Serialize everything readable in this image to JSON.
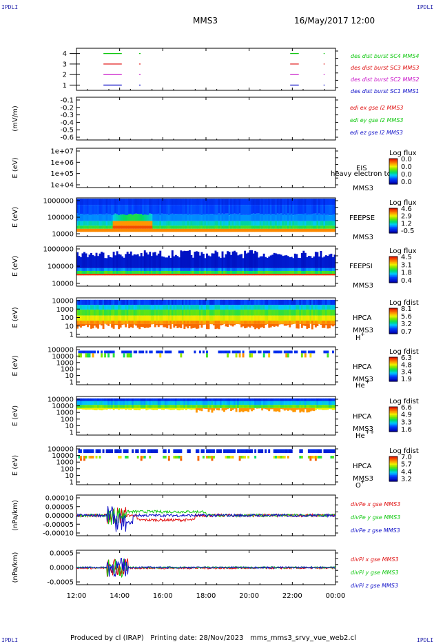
{
  "header": {
    "corner_label": "IPDLI",
    "spacecraft": "MMS3",
    "datetime": "16/May/2017 12:00"
  },
  "footer": {
    "produced_by": "Produced by cl (IRAP)",
    "printing_date": "Printing date: 28/Nov/2023",
    "filename": "mms_mms3_srvy_vue_web2.cl"
  },
  "colors": {
    "red": "#e01010",
    "green": "#10c810",
    "blue": "#1010c8",
    "magenta": "#c814c8",
    "label_blue": "#1c1ca8"
  },
  "chart_data": [
    {
      "id": "burst",
      "type": "line",
      "ylabel": "",
      "yticks": [
        1,
        2,
        3,
        4
      ],
      "ylim": [
        0.5,
        4.5
      ],
      "x_hours": [
        12,
        24
      ],
      "series": [
        {
          "name": "des dist burst SC1 MMS1",
          "color": "#1010c8",
          "level": 1
        },
        {
          "name": "des dist burst SC2 MMS2",
          "color": "#c814c8",
          "level": 2
        },
        {
          "name": "des dist burst SC3 MMS3",
          "color": "#e01010",
          "level": 3
        },
        {
          "name": "des dist burst SC4 MMS4",
          "color": "#10c810",
          "level": 4
        }
      ],
      "intervals": [
        [
          13.25,
          14.1
        ],
        [
          14.9,
          14.97
        ],
        [
          21.9,
          22.3
        ],
        [
          23.45,
          23.5
        ]
      ]
    },
    {
      "id": "edi",
      "type": "line",
      "ylabel": "(mV/m)",
      "yticks": [
        "-0.1",
        "-0.2",
        "-0.3",
        "-0.4",
        "-0.5",
        "-0.6"
      ],
      "ylim": [
        -0.65,
        -0.05
      ],
      "series": [
        {
          "name": "edi ex gse l2 MMS3",
          "color": "#e01010"
        },
        {
          "name": "edi ey gse l2 MMS3",
          "color": "#10c810"
        },
        {
          "name": "edi ez gse l2 MMS3",
          "color": "#1010c8"
        }
      ]
    },
    {
      "id": "eis",
      "type": "heatmap",
      "ylabel": "E (eV)",
      "yticks": [
        "1e+07",
        "1e+06",
        "1e+05",
        "1e+04"
      ],
      "instrument": "EIS",
      "instrument_sub": "MMS3",
      "extra_label": "heavy electron to",
      "colorbar_title": "Log flux",
      "colorbar_ticks": [
        "0.0",
        "0.0",
        "0.0",
        "0.0"
      ]
    },
    {
      "id": "feepse",
      "type": "heatmap",
      "ylabel": "E (eV)",
      "yticks": [
        "1000000",
        "100000",
        "10000"
      ],
      "instrument": "FEEPSE",
      "instrument_sub": "MMS3",
      "colorbar_title": "Log flux",
      "colorbar_ticks": [
        "4.6",
        "2.9",
        "1.2",
        "-0.5"
      ]
    },
    {
      "id": "feepsi",
      "type": "heatmap",
      "ylabel": "E (eV)",
      "yticks": [
        "1000000",
        "100000",
        "10000"
      ],
      "instrument": "FEEPSI",
      "instrument_sub": "MMS3",
      "colorbar_title": "Log flux",
      "colorbar_ticks": [
        "4.5",
        "3.1",
        "1.8",
        "0.4"
      ]
    },
    {
      "id": "hpca_h",
      "type": "heatmap",
      "ylabel": "E (eV)",
      "yticks": [
        "10000",
        "1000",
        "100",
        "10",
        "1"
      ],
      "instrument": "HPCA",
      "instrument_sub": "MMS3",
      "species": "H",
      "charge": "+",
      "colorbar_title": "Log fdist",
      "colorbar_ticks": [
        "8.1",
        "5.6",
        "3.2",
        "0.7"
      ]
    },
    {
      "id": "hpca_he",
      "type": "heatmap",
      "ylabel": "E (eV)",
      "yticks": [
        "100000",
        "10000",
        "1000",
        "100",
        "10",
        "1"
      ],
      "instrument": "HPCA",
      "instrument_sub": "MMS3",
      "species": "He",
      "charge": "+",
      "colorbar_title": "Log fdist",
      "colorbar_ticks": [
        "6.3",
        "4.8",
        "3.4",
        "1.9"
      ]
    },
    {
      "id": "hpca_he2",
      "type": "heatmap",
      "ylabel": "E (eV)",
      "yticks": [
        "100000",
        "10000",
        "1000",
        "100",
        "10",
        "1"
      ],
      "instrument": "HPCA",
      "instrument_sub": "MMS3",
      "species": "He",
      "charge": "++",
      "colorbar_title": "Log fdist",
      "colorbar_ticks": [
        "6.6",
        "4.9",
        "3.3",
        "1.6"
      ]
    },
    {
      "id": "hpca_o",
      "type": "heatmap",
      "ylabel": "E (eV)",
      "yticks": [
        "100000",
        "10000",
        "1000",
        "100",
        "10",
        "1"
      ],
      "instrument": "HPCA",
      "instrument_sub": "MMS3",
      "species": "O",
      "charge": "+",
      "colorbar_title": "Log fdist",
      "colorbar_ticks": [
        "7.0",
        "5.7",
        "4.4",
        "3.2"
      ]
    },
    {
      "id": "divpe",
      "type": "line",
      "ylabel": "(nPa/km)",
      "yticks": [
        "0.00010",
        "0.00005",
        "0.00000",
        "-0.00005",
        "-0.00010"
      ],
      "ylim": [
        -0.00011,
        0.00011
      ],
      "series": [
        {
          "name": "divPe x gse MMS3",
          "color": "#e01010"
        },
        {
          "name": "divPe y gse MMS3",
          "color": "#10c810"
        },
        {
          "name": "divPe z gse MMS3",
          "color": "#1010c8"
        }
      ]
    },
    {
      "id": "divpi",
      "type": "line",
      "ylabel": "(nPa/km)",
      "yticks": [
        "0.0005",
        "0.0000",
        "-0.0005"
      ],
      "ylim": [
        -0.0008,
        0.0008
      ],
      "series": [
        {
          "name": "divPi x gse MMS3",
          "color": "#e01010"
        },
        {
          "name": "divPi y gse MMS3",
          "color": "#10c810"
        },
        {
          "name": "divPi z gse MMS3",
          "color": "#1010c8"
        }
      ]
    }
  ],
  "x_axis": {
    "ticks": [
      "12:00",
      "14:00",
      "16:00",
      "18:00",
      "20:00",
      "22:00",
      "00:00"
    ],
    "range_hours": [
      12,
      24
    ]
  }
}
